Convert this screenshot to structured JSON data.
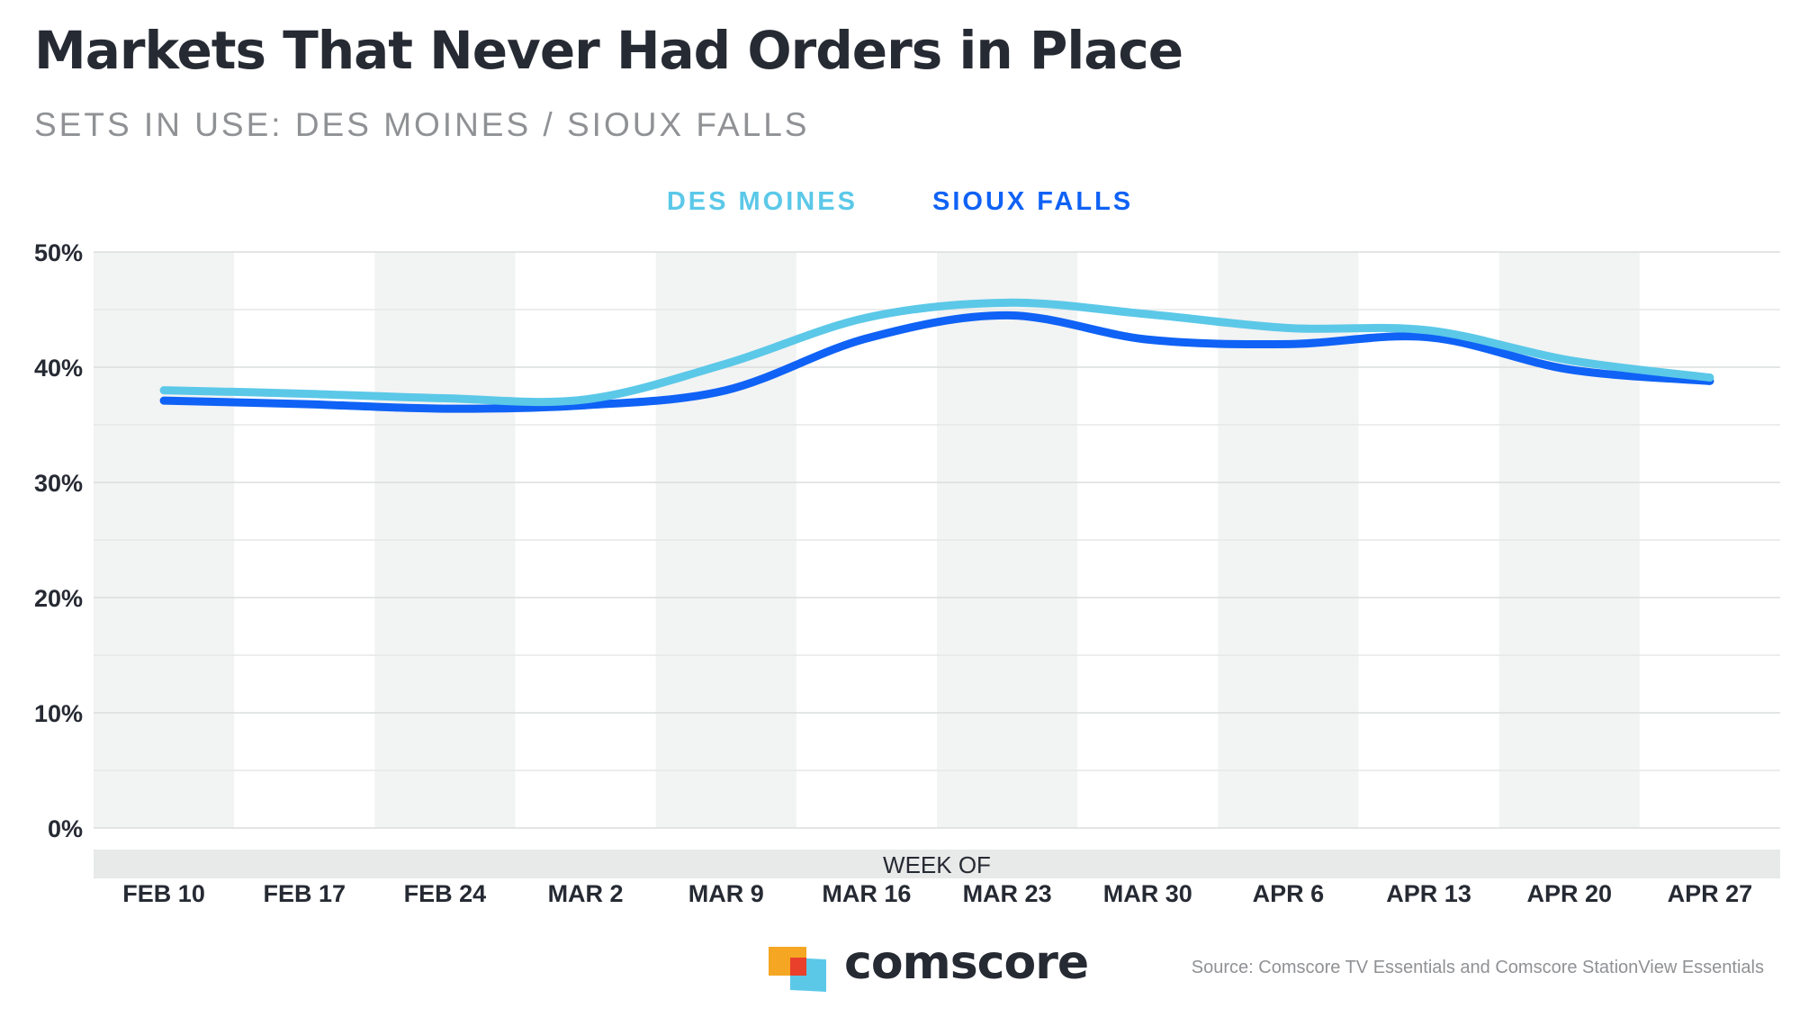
{
  "title": "Markets That Never Had Orders in Place",
  "subtitle": "SETS IN USE: DES MOINES / SIOUX FALLS",
  "brand": "comscore",
  "source": "Source: Comscore TV Essentials and Comscore StationView Essentials",
  "colors": {
    "des_moines": "#5bc8e8",
    "sioux_falls": "#0f62f5",
    "band": "#f2f3f3",
    "axis_text": "#262a33"
  },
  "chart_data": {
    "type": "line",
    "xlabel": "WEEK OF",
    "ylabel": "",
    "categories": [
      "FEB 10",
      "FEB 17",
      "FEB 24",
      "MAR 2",
      "MAR 9",
      "MAR 16",
      "MAR 23",
      "MAR 30",
      "APR 6",
      "APR 13",
      "APR 20",
      "APR 27"
    ],
    "y_ticks": [
      "0%",
      "10%",
      "20%",
      "30%",
      "40%",
      "50%"
    ],
    "ylim": [
      0,
      50
    ],
    "grid": true,
    "legend_position": "top-center",
    "series": [
      {
        "name": "DES MOINES",
        "values": [
          38.0,
          37.7,
          37.3,
          37.2,
          40.3,
          44.3,
          45.6,
          44.6,
          43.4,
          43.2,
          40.6,
          39.1
        ]
      },
      {
        "name": "SIOUX FALLS",
        "values": [
          37.1,
          36.8,
          36.4,
          36.7,
          38.0,
          42.5,
          44.5,
          42.4,
          42.0,
          42.6,
          39.8,
          38.8
        ]
      }
    ]
  }
}
